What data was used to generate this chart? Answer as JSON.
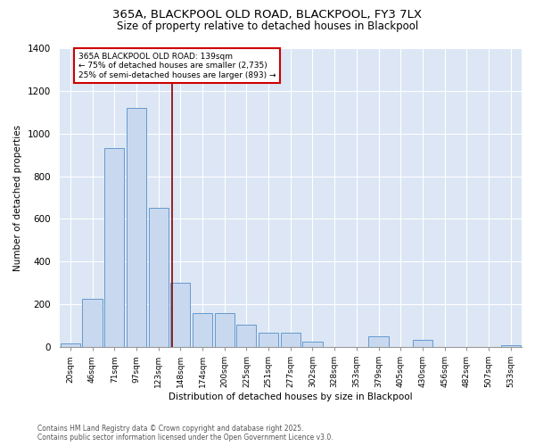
{
  "title_line1": "365A, BLACKPOOL OLD ROAD, BLACKPOOL, FY3 7LX",
  "title_line2": "Size of property relative to detached houses in Blackpool",
  "xlabel": "Distribution of detached houses by size in Blackpool",
  "ylabel": "Number of detached properties",
  "categories": [
    "20sqm",
    "46sqm",
    "71sqm",
    "97sqm",
    "123sqm",
    "148sqm",
    "174sqm",
    "200sqm",
    "225sqm",
    "251sqm",
    "277sqm",
    "302sqm",
    "328sqm",
    "353sqm",
    "379sqm",
    "405sqm",
    "430sqm",
    "456sqm",
    "482sqm",
    "507sqm",
    "533sqm"
  ],
  "values": [
    15,
    225,
    930,
    1120,
    650,
    300,
    160,
    160,
    105,
    65,
    65,
    25,
    0,
    0,
    50,
    0,
    35,
    0,
    0,
    0,
    10
  ],
  "bar_color": "#c8d9ef",
  "bar_edge_color": "#6699cc",
  "annotation_text_line1": "365A BLACKPOOL OLD ROAD: 139sqm",
  "annotation_text_line2": "← 75% of detached houses are smaller (2,735)",
  "annotation_text_line3": "25% of semi-detached houses are larger (893) →",
  "annotation_box_color": "#ffffff",
  "annotation_box_edge": "#cc0000",
  "vline_color": "#8b0000",
  "background_color": "#dce6f5",
  "grid_color": "#ffffff",
  "ylim": [
    0,
    1400
  ],
  "yticks": [
    0,
    200,
    400,
    600,
    800,
    1000,
    1200,
    1400
  ],
  "vline_x": 4.64,
  "footer_line1": "Contains HM Land Registry data © Crown copyright and database right 2025.",
  "footer_line2": "Contains public sector information licensed under the Open Government Licence v3.0."
}
